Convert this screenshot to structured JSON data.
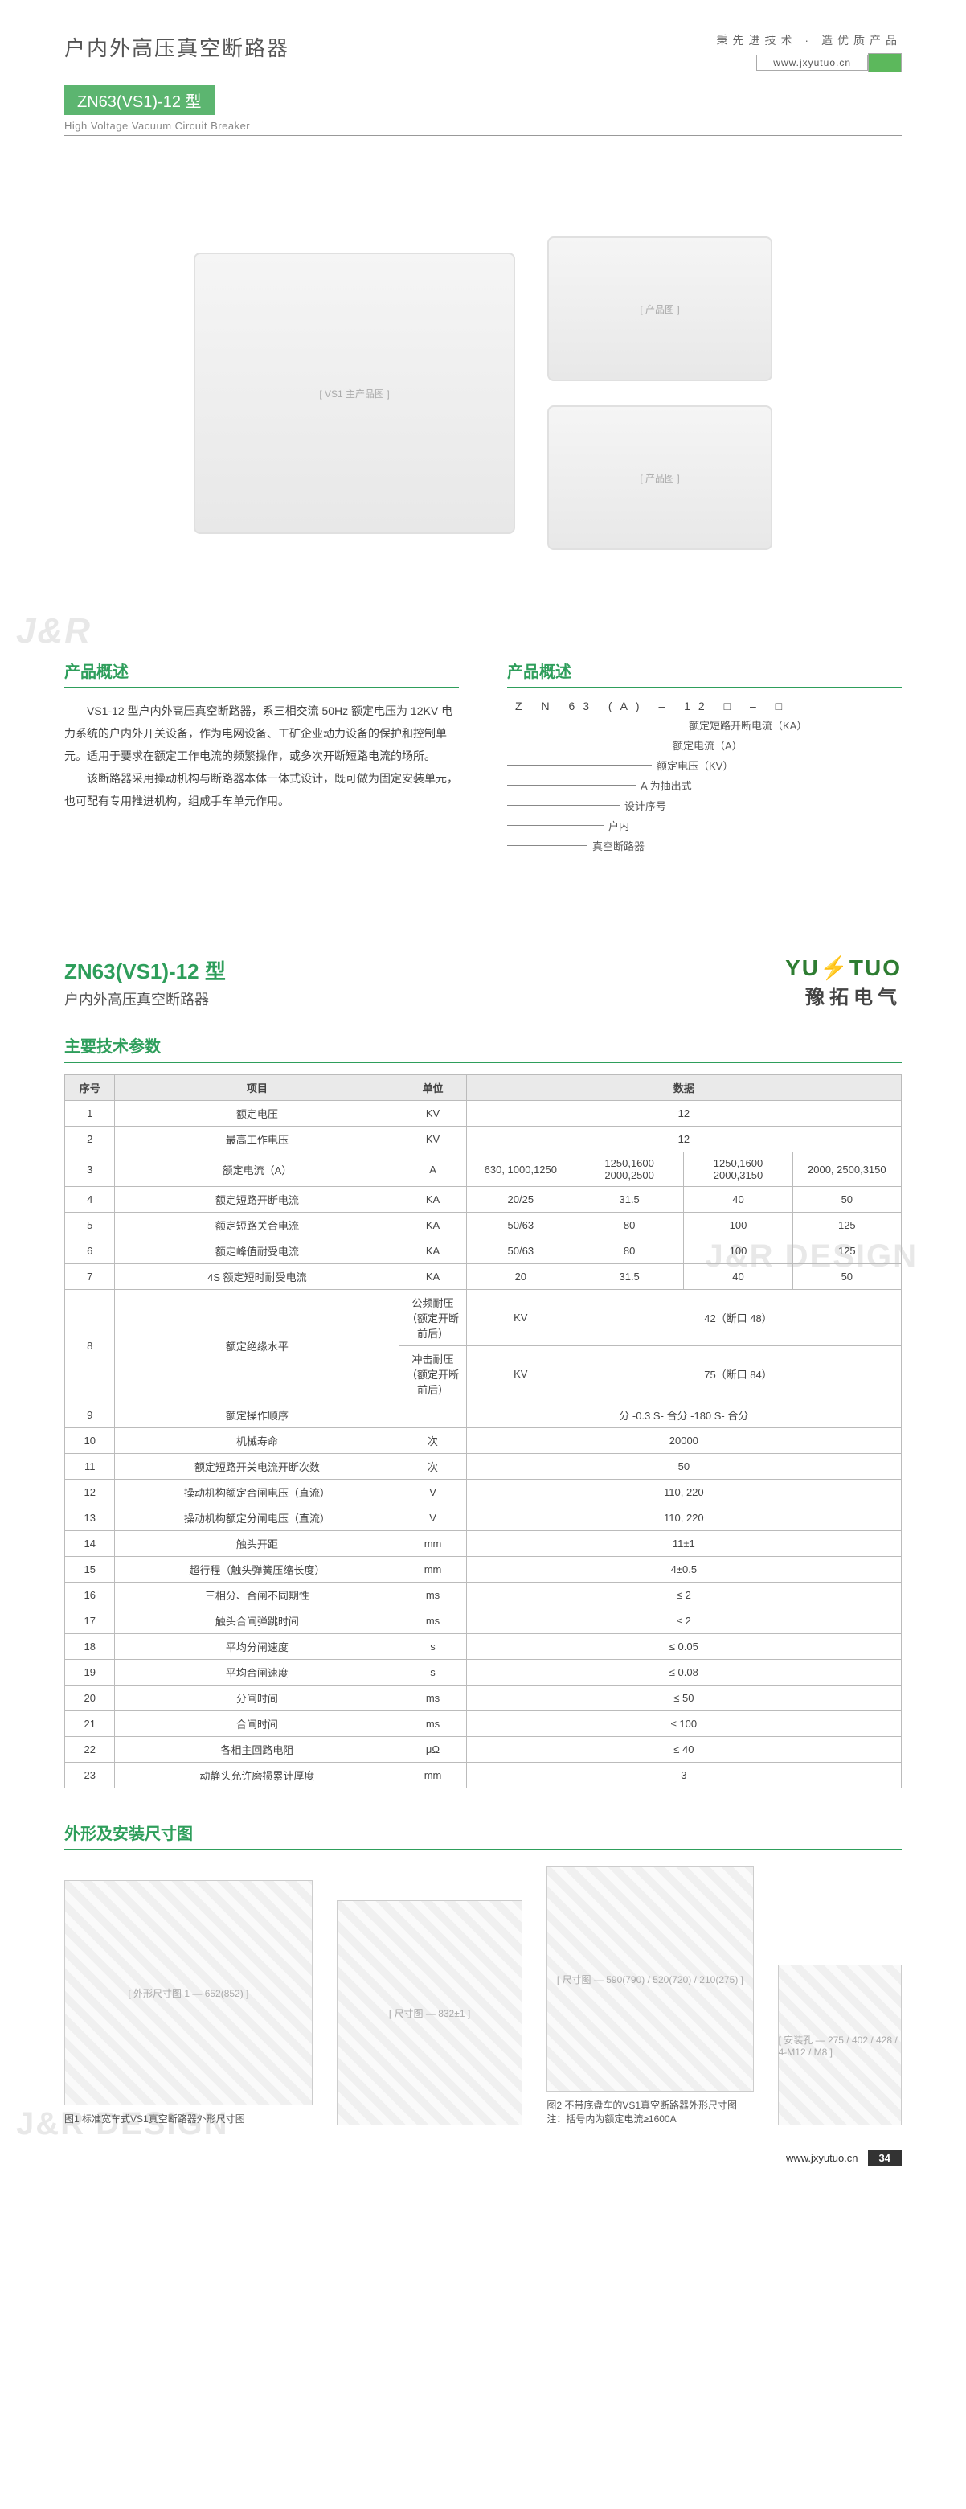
{
  "header": {
    "title_cn": "户内外高压真空断路器",
    "slogan": "秉先进技术 · 造优质产品",
    "url": "www.jxyutuo.cn",
    "model_badge": "ZN63(VS1)-12 型",
    "sub_en": "High Voltage Vacuum Circuit Breaker"
  },
  "watermark": {
    "jr": "J&R",
    "design": "J&R DESIGN"
  },
  "product_placeholders": {
    "main": "[ VS1 主产品图 ]",
    "top": "[ 产品图 ]",
    "bottom": "[ 产品图 ]"
  },
  "overview": {
    "title": "产品概述",
    "para1": "VS1-12 型户内外高压真空断路器，系三相交流 50Hz 额定电压为 12KV 电力系统的户内外开关设备，作为电网设备、工矿企业动力设备的保护和控制单元。适用于要求在额定工作电流的频繁操作，或多次开断短路电流的场所。",
    "para2": "该断路器采用操动机构与断路器本体一体式设计，既可做为固定安装单元，也可配有专用推进机构，组成手车单元作用。"
  },
  "decode": {
    "title": "产品概述",
    "code": "Z N 63 (A) – 12 □ – □",
    "items": [
      "额定短路开断电流（KA）",
      "额定电流（A）",
      "额定电压（KV）",
      "A 为抽出式",
      "设计序号",
      "户内",
      "真空断路器"
    ]
  },
  "page2": {
    "model": "ZN63(VS1)-12 型",
    "sub": "户内外高压真空断路器",
    "logo_en": "YUTUO",
    "logo_cn": "豫拓电气"
  },
  "spec_title": "主要技术参数",
  "spec_headers": [
    "序号",
    "项目",
    "单位",
    "数据"
  ],
  "spec_rows": [
    {
      "n": "1",
      "item": "额定电压",
      "unit": "KV",
      "data": [
        "12"
      ]
    },
    {
      "n": "2",
      "item": "最高工作电压",
      "unit": "KV",
      "data": [
        "12"
      ]
    },
    {
      "n": "3",
      "item": "额定电流（A）",
      "unit": "A",
      "data": [
        "630, 1000,1250",
        "1250,1600 2000,2500",
        "1250,1600 2000,3150",
        "2000, 2500,3150"
      ]
    },
    {
      "n": "4",
      "item": "额定短路开断电流",
      "unit": "KA",
      "data": [
        "20/25",
        "31.5",
        "40",
        "50"
      ]
    },
    {
      "n": "5",
      "item": "额定短路关合电流",
      "unit": "KA",
      "data": [
        "50/63",
        "80",
        "100",
        "125"
      ]
    },
    {
      "n": "6",
      "item": "额定峰值耐受电流",
      "unit": "KA",
      "data": [
        "50/63",
        "80",
        "100",
        "125"
      ]
    },
    {
      "n": "7",
      "item": "4S 额定短时耐受电流",
      "unit": "KA",
      "data": [
        "20",
        "31.5",
        "40",
        "50"
      ]
    },
    {
      "n": "8",
      "item": "额定绝缘水平",
      "sub": [
        {
          "label": "公频耐压（额定开断前后）",
          "unit": "KV",
          "data": "42（断口 48）"
        },
        {
          "label": "冲击耐压（额定开断前后）",
          "unit": "KV",
          "data": "75（断口 84）"
        }
      ]
    },
    {
      "n": "9",
      "item": "额定操作顺序",
      "unit": "",
      "data": [
        "分 -0.3 S- 合分 -180 S- 合分"
      ]
    },
    {
      "n": "10",
      "item": "机械寿命",
      "unit": "次",
      "data": [
        "20000"
      ]
    },
    {
      "n": "11",
      "item": "额定短路开关电流开断次数",
      "unit": "次",
      "data": [
        "50"
      ]
    },
    {
      "n": "12",
      "item": "操动机构额定合闸电压（直流）",
      "unit": "V",
      "data": [
        "110, 220"
      ]
    },
    {
      "n": "13",
      "item": "操动机构额定分闸电压（直流）",
      "unit": "V",
      "data": [
        "110, 220"
      ]
    },
    {
      "n": "14",
      "item": "触头开距",
      "unit": "mm",
      "data": [
        "11±1"
      ]
    },
    {
      "n": "15",
      "item": "超行程（触头弹簧压缩长度）",
      "unit": "mm",
      "data": [
        "4±0.5"
      ]
    },
    {
      "n": "16",
      "item": "三相分、合闸不同期性",
      "unit": "ms",
      "data": [
        "≤ 2"
      ]
    },
    {
      "n": "17",
      "item": "触头合闸弹跳时间",
      "unit": "ms",
      "data": [
        "≤ 2"
      ]
    },
    {
      "n": "18",
      "item": "平均分闸速度",
      "unit": "s",
      "data": [
        "≤ 0.05"
      ]
    },
    {
      "n": "19",
      "item": "平均合闸速度",
      "unit": "s",
      "data": [
        "≤ 0.08"
      ]
    },
    {
      "n": "20",
      "item": "分闸时间",
      "unit": "ms",
      "data": [
        "≤ 50"
      ]
    },
    {
      "n": "21",
      "item": "合闸时间",
      "unit": "ms",
      "data": [
        "≤ 100"
      ]
    },
    {
      "n": "22",
      "item": "各相主回路电阻",
      "unit": "μΩ",
      "data": [
        "≤ 40"
      ]
    },
    {
      "n": "23",
      "item": "动静头允许磨损累计厚度",
      "unit": "mm",
      "data": [
        "3"
      ]
    }
  ],
  "dims": {
    "title": "外形及安装尺寸图",
    "fig1_caption": "图1  标准宽车式VS1真空断路器外形尺寸图",
    "fig2_caption": "图2  不带底盘车的VS1真空断路器外形尺寸图  注：括号内为额定电流≥1600A",
    "fig1_placeholder": "[ 外形尺寸图 1 — 652(852) ]",
    "fig2a_placeholder": "[ 尺寸图 — 832±1 ]",
    "fig2b_placeholder": "[ 尺寸图 — 590(790) / 520(720) / 210(275) ]",
    "fig3_placeholder": "[ 安装孔 — 275 / 402 / 428 / 4-M12 / M8 ]"
  },
  "footer": {
    "url": "www.jxyutuo.cn",
    "page": "34"
  },
  "colors": {
    "accent": "#2e9e5b",
    "badge": "#5cb570"
  }
}
